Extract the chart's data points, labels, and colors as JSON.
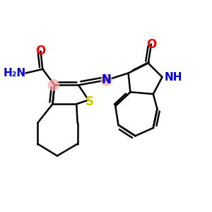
{
  "bg_color": "#ffffff",
  "bond_color": "#000000",
  "bond_width": 1.8,
  "atom_colors": {
    "O": "#ff0000",
    "N": "#0000cc",
    "S": "#cccc00"
  },
  "highlight_color": "#ffaaaa",
  "highlight_alpha": 0.7
}
